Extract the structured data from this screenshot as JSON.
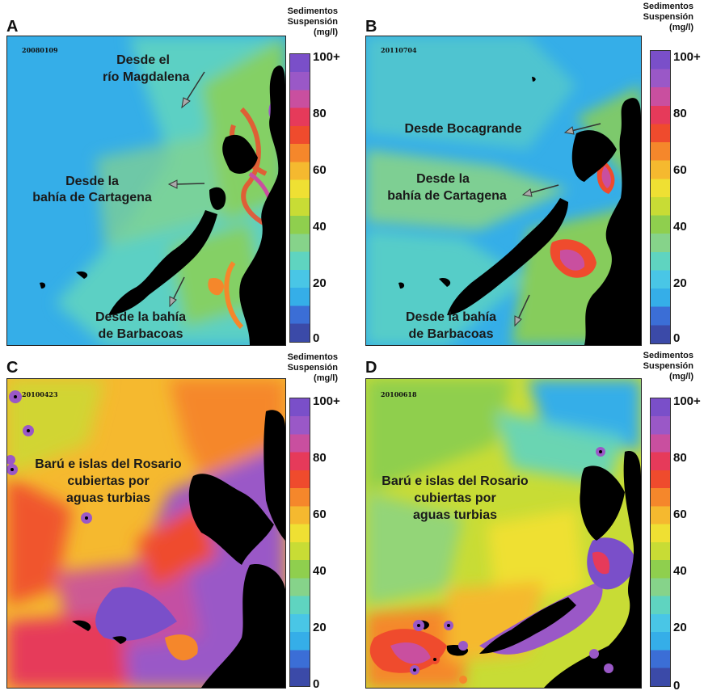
{
  "colors": {
    "ramp": [
      "#3b4aa8",
      "#3b6ed6",
      "#35aee8",
      "#49c6e6",
      "#5fd4c0",
      "#86d38a",
      "#8fcf4e",
      "#c8dc35",
      "#efe033",
      "#f5b92f",
      "#f5872b",
      "#ef4b2d",
      "#e63a5a",
      "#c94f9f",
      "#9a58c7",
      "#7a4fc9"
    ],
    "land": "#000000",
    "arrow": "#777777"
  },
  "panels": [
    {
      "letter": "A",
      "date_code": "20080109",
      "annotations": [
        "Desde el",
        "río Magdalena",
        "Desde la",
        "bahía de Cartagena",
        "Desde la bahía",
        "de Barbacoas"
      ],
      "scale": {
        "title1": "Sedimentos",
        "title2": "Suspensión",
        "title3": "(mg/l)",
        "ticks": [
          "100+",
          "80",
          "60",
          "40",
          "20",
          "0"
        ]
      }
    },
    {
      "letter": "B",
      "date_code": "20110704",
      "annotations": [
        "Desde Bocagrande",
        "Desde la",
        "bahía de Cartagena",
        "Desde la bahía",
        "de Barbacoas"
      ],
      "scale": {
        "title1": "Sedimentos",
        "title2": "Suspensión",
        "title3": "(mg/l)",
        "ticks": [
          "100+",
          "80",
          "60",
          "40",
          "20",
          "0"
        ]
      }
    },
    {
      "letter": "C",
      "date_code": "20100423",
      "annotations": [
        "Barú e islas del Rosario",
        "cubiertas por",
        "aguas turbias"
      ],
      "scale": {
        "title1": "Sedimentos",
        "title2": "Suspensión",
        "title3": "(mg/l)",
        "ticks": [
          "100+",
          "80",
          "60",
          "40",
          "20",
          "0"
        ]
      }
    },
    {
      "letter": "D",
      "date_code": "20100618",
      "annotations": [
        "Barú e islas del Rosario",
        "cubiertas por",
        "aguas turbias"
      ],
      "scale": {
        "title1": "Sedimentos",
        "title2": "Suspensión",
        "title3": "(mg/l)",
        "ticks": [
          "100+",
          "80",
          "60",
          "40",
          "20",
          "0"
        ]
      }
    }
  ]
}
